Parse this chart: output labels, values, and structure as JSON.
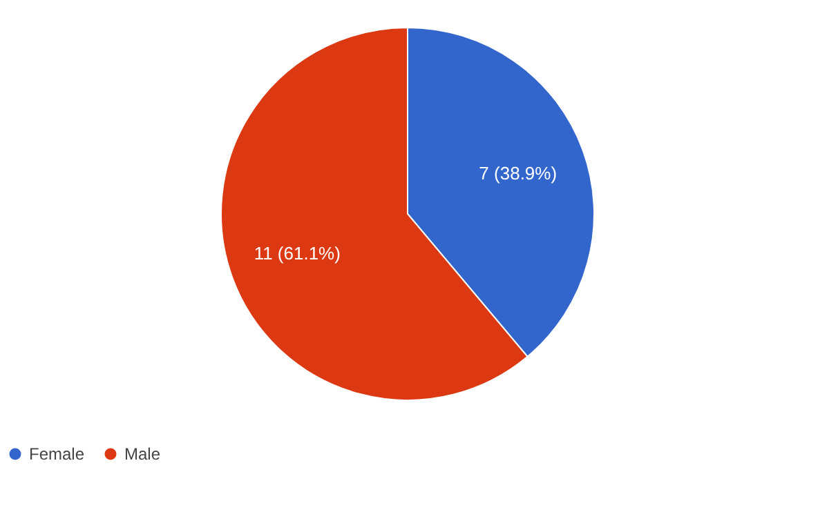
{
  "chart_data": {
    "type": "pie",
    "categories": [
      "Female",
      "Male"
    ],
    "values": [
      7,
      11
    ],
    "colors": [
      "#3366cc",
      "#dc3912"
    ],
    "value_labels": [
      "7 (38.9%)",
      "11 (61.1%)"
    ],
    "legend": "bottom"
  }
}
